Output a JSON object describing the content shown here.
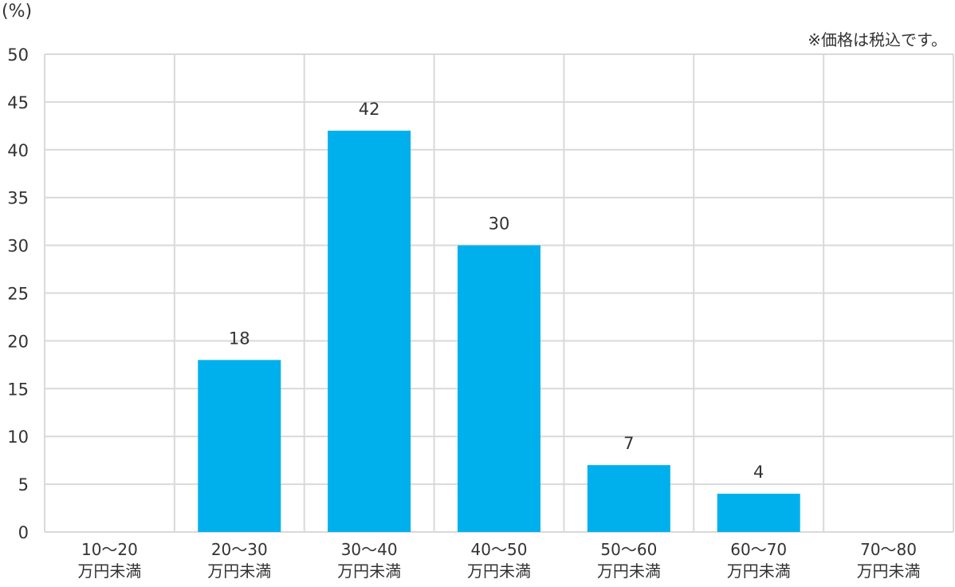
{
  "unit_label": "(%)",
  "note": "※価格は税込です。",
  "colors": {
    "bar": "#00B0EC",
    "grid": "#D9D9D9",
    "text": "#333333"
  },
  "chart_data": {
    "type": "bar",
    "categories": [
      [
        "10～20",
        "万円未満"
      ],
      [
        "20～30",
        "万円未満"
      ],
      [
        "30～40",
        "万円未満"
      ],
      [
        "40～50",
        "万円未満"
      ],
      [
        "50～60",
        "万円未満"
      ],
      [
        "60～70",
        "万円未満"
      ],
      [
        "70～80",
        "万円未満"
      ]
    ],
    "values": [
      0,
      18,
      42,
      30,
      7,
      4,
      0
    ],
    "data_labels": [
      "",
      "18",
      "42",
      "30",
      "7",
      "4",
      ""
    ],
    "yticks": [
      0,
      5,
      10,
      15,
      20,
      25,
      30,
      35,
      40,
      45,
      50
    ],
    "ylim": [
      0,
      50
    ],
    "grid": true,
    "legend": false
  }
}
